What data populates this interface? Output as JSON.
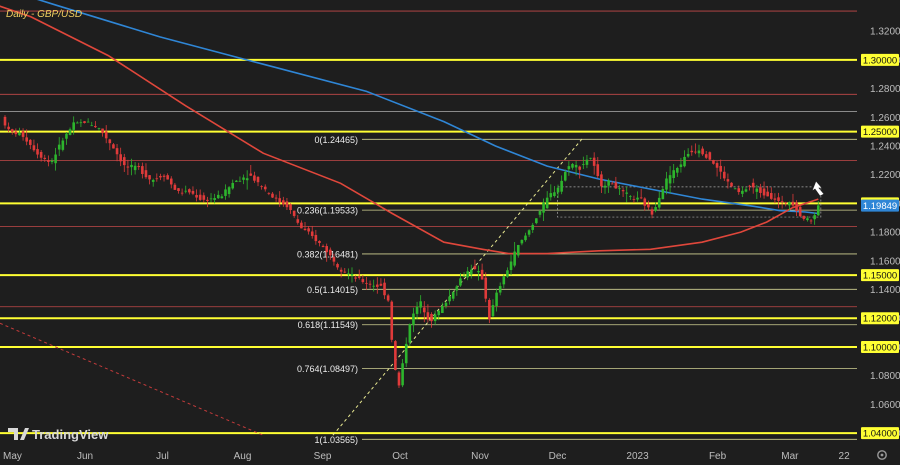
{
  "chart_data": {
    "type": "candlestick",
    "title": "Daily - GBP/USD",
    "watermark": "TradingView",
    "ylim": [
      1.0317,
      1.3417
    ],
    "y_ticks": [
      "1.32000",
      "1.30000",
      "1.28000",
      "1.26000",
      "1.24000",
      "1.22000",
      "1.20000",
      "1.18000",
      "1.16000",
      "1.14000",
      "1.12000",
      "1.10000",
      "1.08000",
      "1.06000",
      "1.04000"
    ],
    "x_ticks": [
      {
        "label": "May",
        "d": 0
      },
      {
        "label": "Jun",
        "d": 31
      },
      {
        "label": "Jul",
        "d": 61
      },
      {
        "label": "Aug",
        "d": 92
      },
      {
        "label": "Sep",
        "d": 123
      },
      {
        "label": "Oct",
        "d": 153
      },
      {
        "label": "Nov",
        "d": 184
      },
      {
        "label": "Dec",
        "d": 214
      },
      {
        "label": "2023",
        "d": 245
      },
      {
        "label": "Feb",
        "d": 276
      },
      {
        "label": "Mar",
        "d": 304
      },
      {
        "label": "22",
        "d": 325
      }
    ],
    "x_domain_days": [
      0,
      330
    ],
    "horizontal_levels": [
      {
        "value": 1.334,
        "color": "#e05050",
        "style": "thin"
      },
      {
        "value": 1.3,
        "color": "#ffff33",
        "style": "thick",
        "label": "1.30000"
      },
      {
        "value": 1.276,
        "color": "#e05050",
        "style": "thin"
      },
      {
        "value": 1.264,
        "color": "#c8c8c8",
        "style": "thin"
      },
      {
        "value": 1.25,
        "color": "#ffff33",
        "style": "thick",
        "label": "1.25000"
      },
      {
        "value": 1.23,
        "color": "#e05050",
        "style": "thin"
      },
      {
        "value": 1.2,
        "color": "#ffff33",
        "style": "thick",
        "label": "1.20000"
      },
      {
        "value": 1.184,
        "color": "#e05050",
        "style": "thin"
      },
      {
        "value": 1.15,
        "color": "#ffff33",
        "style": "thick",
        "label": "1.15000"
      },
      {
        "value": 1.128,
        "color": "#e05050",
        "style": "thin"
      },
      {
        "value": 1.12,
        "color": "#ffff33",
        "style": "thick",
        "label": "1.12000"
      },
      {
        "value": 1.1,
        "color": "#ffff33",
        "style": "thick",
        "label": "1.10000"
      },
      {
        "value": 1.04,
        "color": "#ffff33",
        "style": "thick",
        "label": "1.04000"
      }
    ],
    "fibonacci": {
      "levels": [
        {
          "text": "0(1.24465)",
          "value": 1.24465
        },
        {
          "text": "0.236(1.19533)",
          "value": 1.19533
        },
        {
          "text": "0.382(1.16481)",
          "value": 1.16481
        },
        {
          "text": "0.5(1.14015)",
          "value": 1.14015
        },
        {
          "text": "0.618(1.11549)",
          "value": 1.11549
        },
        {
          "text": "0.764(1.08497)",
          "value": 1.08497
        },
        {
          "text": "1(1.03565)",
          "value": 1.03565
        }
      ]
    },
    "last_price": {
      "label": "1.19849",
      "value": 1.19849
    },
    "series": [
      {
        "kind": "moving-average",
        "color": "#2f86d6",
        "points": [
          [
            -5,
            1.352
          ],
          [
            20,
            1.338
          ],
          [
            60,
            1.316
          ],
          [
            100,
            1.297
          ],
          [
            140,
            1.278
          ],
          [
            170,
            1.257
          ],
          [
            190,
            1.24
          ],
          [
            210,
            1.226
          ],
          [
            230,
            1.217
          ],
          [
            250,
            1.21
          ],
          [
            270,
            1.203
          ],
          [
            290,
            1.198
          ],
          [
            300,
            1.195
          ],
          [
            310,
            1.194
          ],
          [
            315,
            1.193
          ]
        ]
      },
      {
        "kind": "moving-average",
        "color": "#e0473b",
        "points": [
          [
            -3,
            1.338
          ],
          [
            10,
            1.33
          ],
          [
            40,
            1.303
          ],
          [
            70,
            1.268
          ],
          [
            100,
            1.235
          ],
          [
            130,
            1.214
          ],
          [
            150,
            1.193
          ],
          [
            170,
            1.173
          ],
          [
            185,
            1.168
          ],
          [
            195,
            1.165
          ],
          [
            210,
            1.165
          ],
          [
            230,
            1.167
          ],
          [
            250,
            1.168
          ],
          [
            270,
            1.173
          ],
          [
            285,
            1.18
          ],
          [
            295,
            1.187
          ],
          [
            305,
            1.197
          ],
          [
            315,
            1.203
          ]
        ]
      }
    ],
    "candle_path": [
      [
        0,
        1.26
      ],
      [
        3,
        1.25
      ],
      [
        8,
        1.248
      ],
      [
        14,
        1.235
      ],
      [
        19,
        1.228
      ],
      [
        24,
        1.245
      ],
      [
        28,
        1.255
      ],
      [
        33,
        1.257
      ],
      [
        38,
        1.252
      ],
      [
        43,
        1.24
      ],
      [
        48,
        1.225
      ],
      [
        53,
        1.225
      ],
      [
        58,
        1.216
      ],
      [
        63,
        1.22
      ],
      [
        68,
        1.208
      ],
      [
        73,
        1.208
      ],
      [
        78,
        1.202
      ],
      [
        85,
        1.205
      ],
      [
        90,
        1.215
      ],
      [
        96,
        1.22
      ],
      [
        101,
        1.212
      ],
      [
        106,
        1.203
      ],
      [
        111,
        1.198
      ],
      [
        116,
        1.183
      ],
      [
        121,
        1.176
      ],
      [
        126,
        1.167
      ],
      [
        131,
        1.155
      ],
      [
        137,
        1.148
      ],
      [
        142,
        1.144
      ],
      [
        147,
        1.142
      ],
      [
        150,
        1.132
      ],
      [
        152,
        1.088
      ],
      [
        154,
        1.073
      ],
      [
        158,
        1.116
      ],
      [
        162,
        1.132
      ],
      [
        166,
        1.118
      ],
      [
        170,
        1.126
      ],
      [
        174,
        1.136
      ],
      [
        178,
        1.148
      ],
      [
        182,
        1.155
      ],
      [
        186,
        1.15
      ],
      [
        189,
        1.12
      ],
      [
        192,
        1.138
      ],
      [
        196,
        1.154
      ],
      [
        200,
        1.17
      ],
      [
        204,
        1.18
      ],
      [
        208,
        1.193
      ],
      [
        212,
        1.205
      ],
      [
        216,
        1.212
      ],
      [
        220,
        1.228
      ],
      [
        224,
        1.225
      ],
      [
        228,
        1.233
      ],
      [
        232,
        1.213
      ],
      [
        236,
        1.215
      ],
      [
        240,
        1.208
      ],
      [
        244,
        1.204
      ],
      [
        248,
        1.202
      ],
      [
        252,
        1.193
      ],
      [
        255,
        1.206
      ],
      [
        258,
        1.218
      ],
      [
        262,
        1.225
      ],
      [
        266,
        1.235
      ],
      [
        270,
        1.238
      ],
      [
        274,
        1.232
      ],
      [
        278,
        1.223
      ],
      [
        282,
        1.213
      ],
      [
        286,
        1.207
      ],
      [
        290,
        1.212
      ],
      [
        294,
        1.208
      ],
      [
        298,
        1.205
      ],
      [
        302,
        1.2
      ],
      [
        306,
        1.202
      ],
      [
        310,
        1.19
      ],
      [
        314,
        1.188
      ],
      [
        316,
        1.198
      ]
    ]
  }
}
